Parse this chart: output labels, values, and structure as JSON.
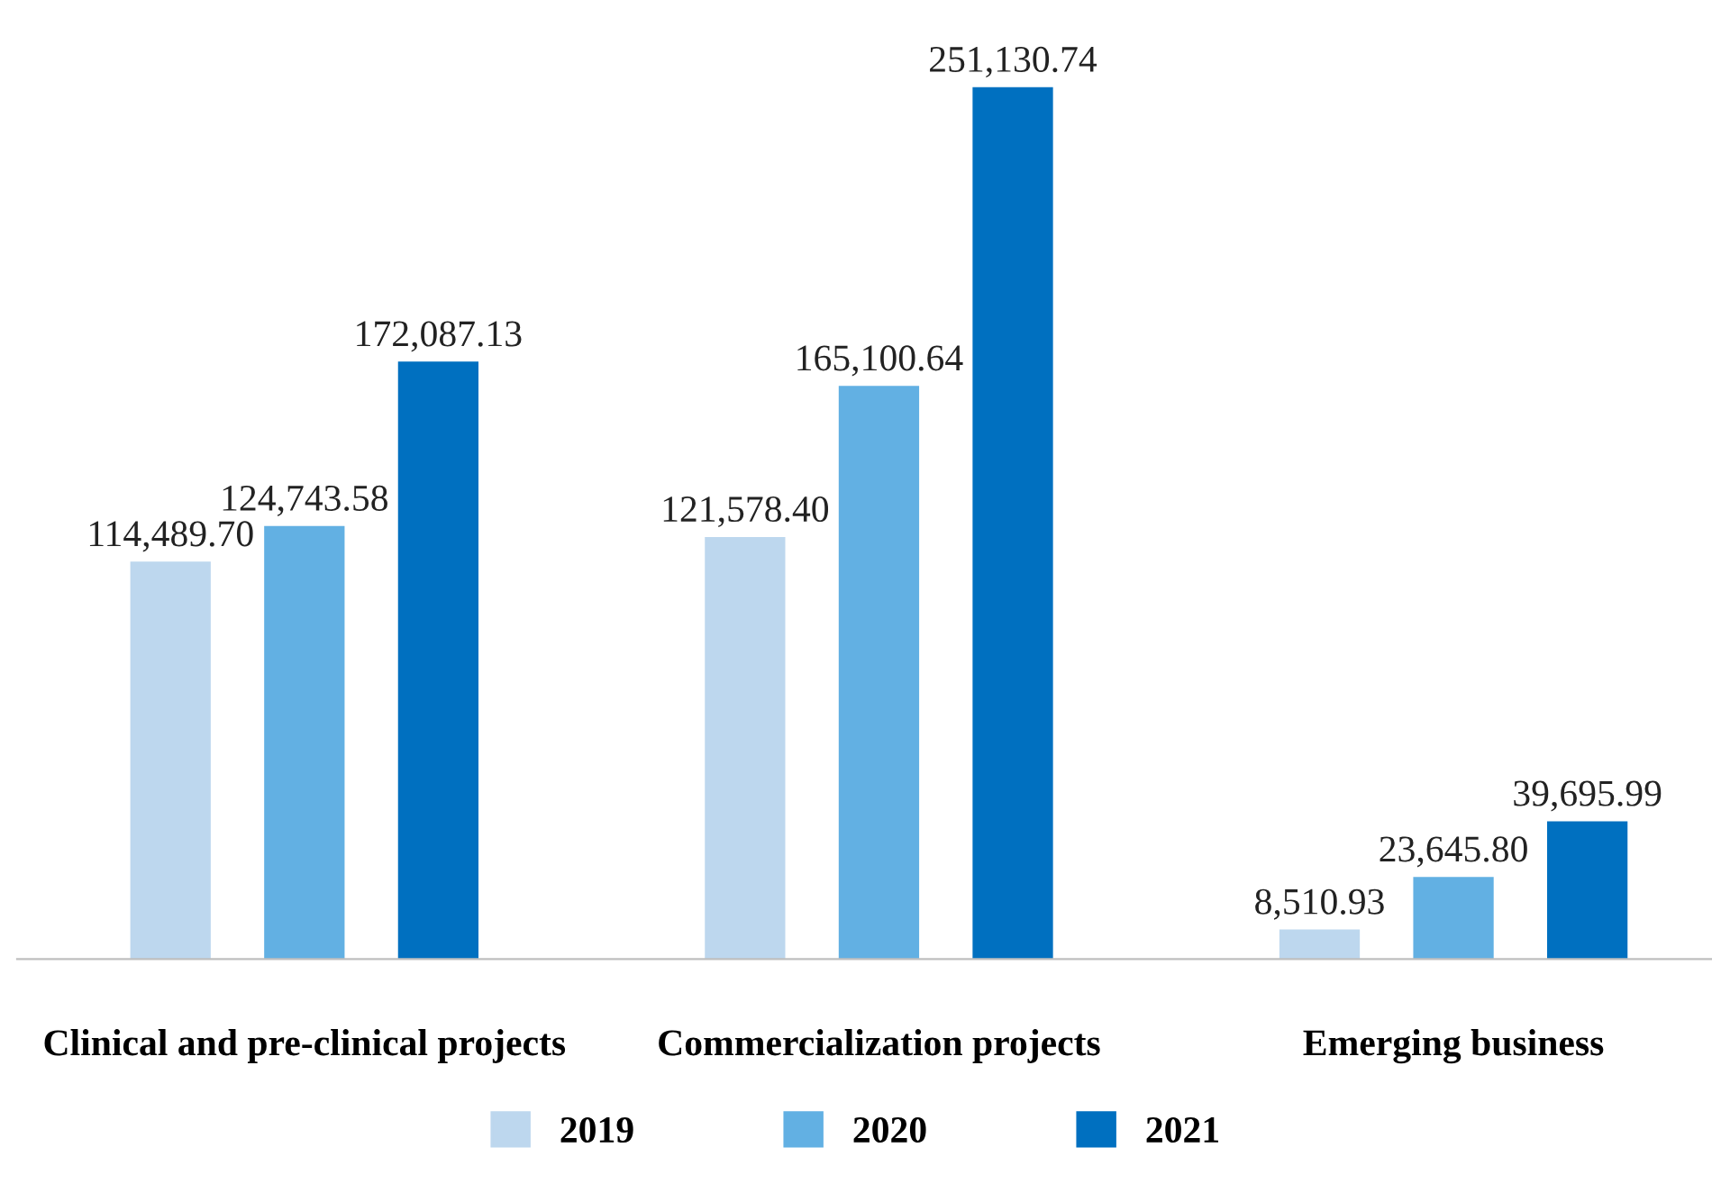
{
  "chart_data": {
    "type": "bar",
    "categories": [
      "Clinical and pre-clinical projects",
      "Commercialization projects",
      "Emerging business"
    ],
    "series": [
      {
        "name": "2019",
        "color": "#bdd7ee",
        "values": [
          114489.7,
          121578.4,
          8510.93
        ],
        "value_labels": [
          "114,489.70",
          "121,578.40",
          "8,510.93"
        ]
      },
      {
        "name": "2020",
        "color": "#62b0e3",
        "values": [
          124743.58,
          165100.64,
          23645.8
        ],
        "value_labels": [
          "124,743.58",
          "165,100.64",
          "23,645.80"
        ]
      },
      {
        "name": "2021",
        "color": "#0070c0",
        "values": [
          172087.13,
          251130.74,
          39695.99
        ],
        "value_labels": [
          "172,087.13",
          "251,130.74",
          "39,695.99"
        ]
      }
    ],
    "legend": "bottom",
    "grid": false
  }
}
